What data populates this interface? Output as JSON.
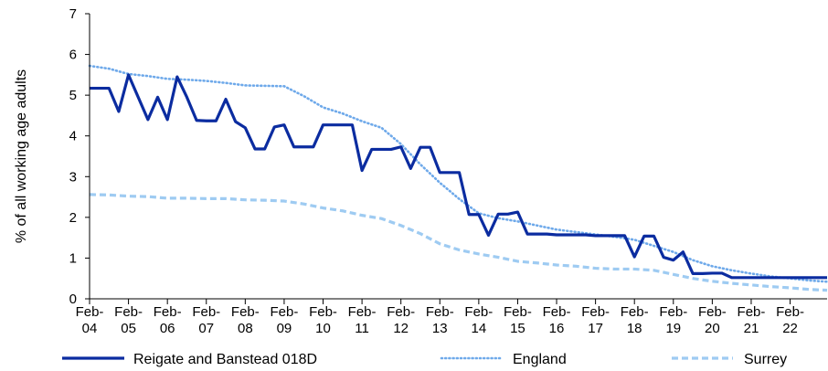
{
  "chart_data": {
    "type": "line",
    "ylabel": "% of all working age adults",
    "ylim": [
      0,
      7
    ],
    "yticks": [
      0,
      1,
      2,
      3,
      4,
      5,
      6,
      7
    ],
    "xlim": [
      2004.0,
      2022.95
    ],
    "x_tick_labels": [
      {
        "x": 2004,
        "label": "Feb-\n04"
      },
      {
        "x": 2005,
        "label": "Feb-\n05"
      },
      {
        "x": 2006,
        "label": "Feb-\n06"
      },
      {
        "x": 2007,
        "label": "Feb-\n07"
      },
      {
        "x": 2008,
        "label": "Feb-\n08"
      },
      {
        "x": 2009,
        "label": "Feb-\n09"
      },
      {
        "x": 2010,
        "label": "Feb-\n10"
      },
      {
        "x": 2011,
        "label": "Feb-\n11"
      },
      {
        "x": 2012,
        "label": "Feb-\n12"
      },
      {
        "x": 2013,
        "label": "Feb-\n13"
      },
      {
        "x": 2014,
        "label": "Feb-\n14"
      },
      {
        "x": 2015,
        "label": "Feb-\n15"
      },
      {
        "x": 2016,
        "label": "Feb-\n16"
      },
      {
        "x": 2017,
        "label": "Feb-\n17"
      },
      {
        "x": 2018,
        "label": "Feb-\n18"
      },
      {
        "x": 2019,
        "label": "Feb-\n19"
      },
      {
        "x": 2020,
        "label": "Feb-\n20"
      },
      {
        "x": 2021,
        "label": "Feb-\n21"
      },
      {
        "x": 2022,
        "label": "Feb-\n22"
      }
    ],
    "grid": false,
    "legend_position": "bottom",
    "series": [
      {
        "name": "Reigate and Banstead 018D",
        "color": "#0b2ca0",
        "style": "solid",
        "points": [
          [
            2004.0,
            5.17
          ],
          [
            2004.25,
            5.17
          ],
          [
            2004.5,
            5.17
          ],
          [
            2004.75,
            4.6
          ],
          [
            2005.0,
            5.5
          ],
          [
            2005.25,
            4.95
          ],
          [
            2005.5,
            4.4
          ],
          [
            2005.75,
            4.95
          ],
          [
            2006.0,
            4.4
          ],
          [
            2006.25,
            5.45
          ],
          [
            2006.5,
            4.95
          ],
          [
            2006.75,
            4.38
          ],
          [
            2007.0,
            4.37
          ],
          [
            2007.25,
            4.37
          ],
          [
            2007.5,
            4.9
          ],
          [
            2007.75,
            4.35
          ],
          [
            2008.0,
            4.2
          ],
          [
            2008.25,
            3.68
          ],
          [
            2008.5,
            3.68
          ],
          [
            2008.75,
            4.22
          ],
          [
            2009.0,
            4.27
          ],
          [
            2009.25,
            3.73
          ],
          [
            2009.5,
            3.73
          ],
          [
            2009.75,
            3.73
          ],
          [
            2010.0,
            4.27
          ],
          [
            2010.25,
            4.27
          ],
          [
            2010.5,
            4.27
          ],
          [
            2010.75,
            4.27
          ],
          [
            2011.0,
            3.15
          ],
          [
            2011.25,
            3.67
          ],
          [
            2011.5,
            3.67
          ],
          [
            2011.75,
            3.67
          ],
          [
            2012.0,
            3.73
          ],
          [
            2012.25,
            3.2
          ],
          [
            2012.5,
            3.72
          ],
          [
            2012.75,
            3.72
          ],
          [
            2013.0,
            3.1
          ],
          [
            2013.25,
            3.1
          ],
          [
            2013.5,
            3.1
          ],
          [
            2013.75,
            2.07
          ],
          [
            2014.0,
            2.07
          ],
          [
            2014.25,
            1.56
          ],
          [
            2014.5,
            2.08
          ],
          [
            2014.75,
            2.08
          ],
          [
            2015.0,
            2.13
          ],
          [
            2015.25,
            1.59
          ],
          [
            2015.5,
            1.59
          ],
          [
            2015.75,
            1.59
          ],
          [
            2016.0,
            1.57
          ],
          [
            2016.25,
            1.57
          ],
          [
            2016.5,
            1.57
          ],
          [
            2016.75,
            1.57
          ],
          [
            2017.0,
            1.55
          ],
          [
            2017.25,
            1.55
          ],
          [
            2017.5,
            1.55
          ],
          [
            2017.75,
            1.55
          ],
          [
            2018.0,
            1.03
          ],
          [
            2018.25,
            1.54
          ],
          [
            2018.5,
            1.54
          ],
          [
            2018.75,
            1.02
          ],
          [
            2019.0,
            0.95
          ],
          [
            2019.25,
            1.15
          ],
          [
            2019.5,
            0.62
          ],
          [
            2019.75,
            0.62
          ],
          [
            2020.0,
            0.63
          ],
          [
            2020.25,
            0.63
          ],
          [
            2020.5,
            0.52
          ],
          [
            2020.75,
            0.52
          ],
          [
            2021.0,
            0.52
          ],
          [
            2021.25,
            0.52
          ],
          [
            2021.5,
            0.52
          ],
          [
            2021.75,
            0.52
          ],
          [
            2022.0,
            0.52
          ],
          [
            2022.25,
            0.52
          ],
          [
            2022.5,
            0.52
          ],
          [
            2022.75,
            0.52
          ],
          [
            2022.95,
            0.52
          ]
        ]
      },
      {
        "name": "England",
        "color": "#6ea9ea",
        "style": "dotted",
        "points": [
          [
            2004.0,
            5.72
          ],
          [
            2004.5,
            5.65
          ],
          [
            2005.0,
            5.52
          ],
          [
            2005.5,
            5.47
          ],
          [
            2006.0,
            5.4
          ],
          [
            2006.5,
            5.38
          ],
          [
            2007.0,
            5.35
          ],
          [
            2007.5,
            5.3
          ],
          [
            2008.0,
            5.24
          ],
          [
            2008.5,
            5.23
          ],
          [
            2009.0,
            5.22
          ],
          [
            2009.5,
            4.98
          ],
          [
            2010.0,
            4.7
          ],
          [
            2010.5,
            4.55
          ],
          [
            2011.0,
            4.36
          ],
          [
            2011.5,
            4.2
          ],
          [
            2012.0,
            3.8
          ],
          [
            2012.5,
            3.3
          ],
          [
            2013.0,
            2.85
          ],
          [
            2013.5,
            2.45
          ],
          [
            2014.0,
            2.1
          ],
          [
            2014.5,
            1.98
          ],
          [
            2015.0,
            1.9
          ],
          [
            2015.5,
            1.8
          ],
          [
            2016.0,
            1.7
          ],
          [
            2016.5,
            1.64
          ],
          [
            2017.0,
            1.58
          ],
          [
            2017.5,
            1.52
          ],
          [
            2018.0,
            1.45
          ],
          [
            2018.5,
            1.3
          ],
          [
            2019.0,
            1.15
          ],
          [
            2019.5,
            0.95
          ],
          [
            2020.0,
            0.8
          ],
          [
            2020.5,
            0.7
          ],
          [
            2021.0,
            0.62
          ],
          [
            2021.5,
            0.55
          ],
          [
            2022.0,
            0.5
          ],
          [
            2022.5,
            0.45
          ],
          [
            2022.95,
            0.42
          ]
        ]
      },
      {
        "name": "Surrey",
        "color": "#9ecbf2",
        "style": "dashed",
        "points": [
          [
            2004.0,
            2.56
          ],
          [
            2004.5,
            2.55
          ],
          [
            2005.0,
            2.52
          ],
          [
            2005.5,
            2.51
          ],
          [
            2006.0,
            2.47
          ],
          [
            2006.5,
            2.47
          ],
          [
            2007.0,
            2.46
          ],
          [
            2007.5,
            2.46
          ],
          [
            2008.0,
            2.43
          ],
          [
            2008.5,
            2.42
          ],
          [
            2009.0,
            2.4
          ],
          [
            2009.5,
            2.33
          ],
          [
            2010.0,
            2.23
          ],
          [
            2010.5,
            2.16
          ],
          [
            2011.0,
            2.05
          ],
          [
            2011.5,
            1.97
          ],
          [
            2012.0,
            1.8
          ],
          [
            2012.5,
            1.6
          ],
          [
            2013.0,
            1.35
          ],
          [
            2013.5,
            1.2
          ],
          [
            2014.0,
            1.1
          ],
          [
            2014.5,
            1.02
          ],
          [
            2015.0,
            0.92
          ],
          [
            2015.5,
            0.88
          ],
          [
            2016.0,
            0.83
          ],
          [
            2016.5,
            0.8
          ],
          [
            2017.0,
            0.75
          ],
          [
            2017.5,
            0.73
          ],
          [
            2018.0,
            0.73
          ],
          [
            2018.5,
            0.7
          ],
          [
            2019.0,
            0.6
          ],
          [
            2019.5,
            0.5
          ],
          [
            2020.0,
            0.43
          ],
          [
            2020.5,
            0.38
          ],
          [
            2021.0,
            0.34
          ],
          [
            2021.5,
            0.3
          ],
          [
            2022.0,
            0.27
          ],
          [
            2022.5,
            0.23
          ],
          [
            2022.95,
            0.21
          ]
        ]
      }
    ]
  }
}
